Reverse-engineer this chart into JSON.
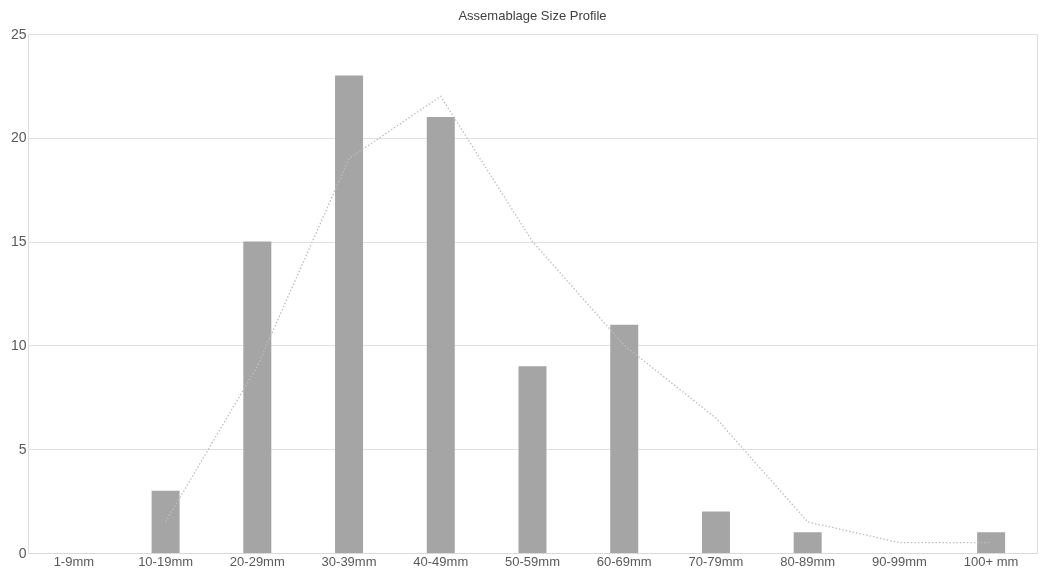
{
  "chart_data": {
    "type": "bar",
    "title": "Assemablage Size Profile",
    "categories": [
      "1-9mm",
      "10-19mm",
      "20-29mm",
      "30-39mm",
      "40-49mm",
      "50-59mm",
      "60-69mm",
      "70-79mm",
      "80-89mm",
      "90-99mm",
      "100+ mm"
    ],
    "series": [
      {
        "color": "#a5a5a5",
        "values": [
          0,
          3,
          15,
          23,
          21,
          9,
          11,
          2,
          1,
          0,
          1
        ]
      },
      {
        "type": "line",
        "color": "#bdbdbd",
        "line_style": "dotted",
        "marker": "none",
        "values": [
          null,
          1.5,
          9,
          19,
          22,
          15,
          10,
          6.5,
          1.5,
          0.5,
          0.5
        ]
      }
    ],
    "ylim": [
      0,
      25
    ],
    "yticks": [
      0,
      5,
      10,
      15,
      20,
      25
    ],
    "grid": "y"
  }
}
